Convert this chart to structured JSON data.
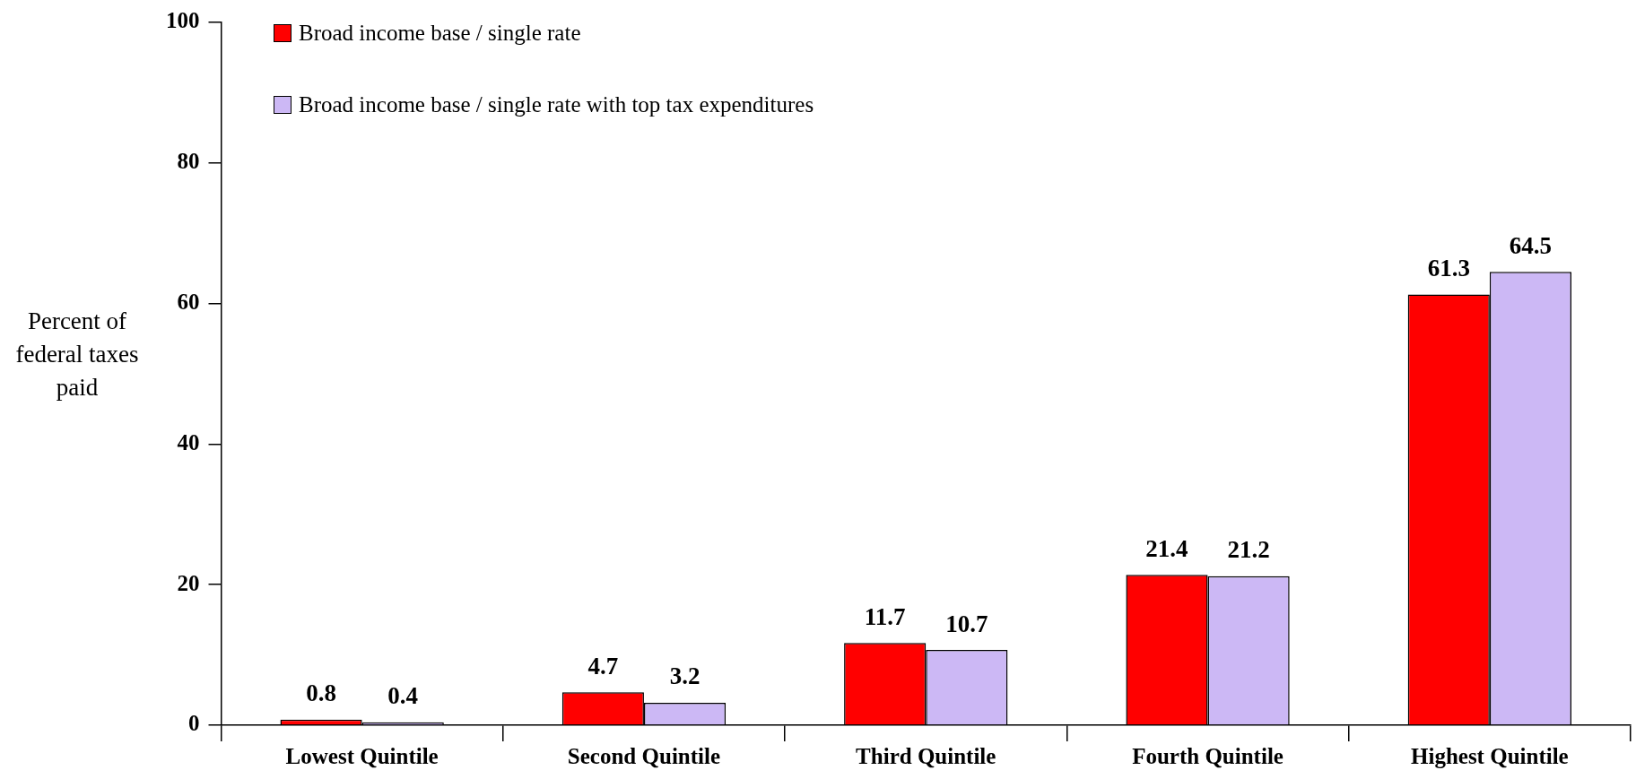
{
  "chart_data": {
    "type": "bar",
    "ylabel": "Percent of federal taxes paid",
    "categories": [
      "Lowest Quintile",
      "Second Quintile",
      "Third Quintile",
      "Fourth Quintile",
      "Highest Quintile"
    ],
    "series": [
      {
        "name": "Broad income base / single rate",
        "color": "#ff0000",
        "values": [
          0.8,
          4.7,
          11.7,
          21.4,
          61.3
        ]
      },
      {
        "name": "Broad income base / single rate with top tax expenditures",
        "color": "#ccb8f5",
        "values": [
          0.4,
          3.2,
          10.7,
          21.2,
          64.5
        ]
      }
    ],
    "ylim": [
      0,
      100
    ],
    "yticks": [
      0,
      20,
      40,
      60,
      80,
      100
    ],
    "grid": false,
    "legend": "top left",
    "data_labels": true
  }
}
